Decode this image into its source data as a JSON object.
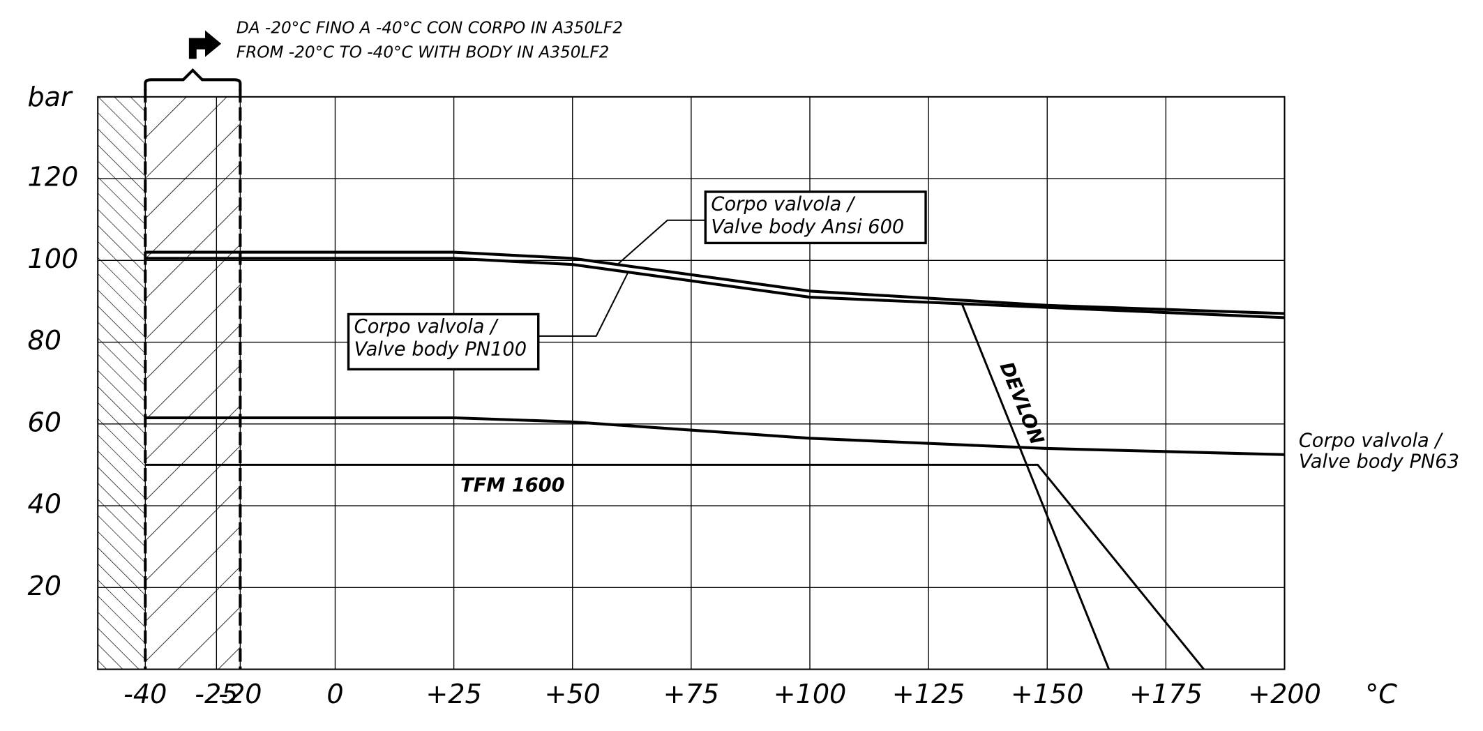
{
  "chart_data": {
    "type": "line",
    "annotation": [
      "DA -20°C FINO A -40°C CON CORPO IN A350LF2",
      "FROM -20°C TO -40°C WITH BODY IN A350LF2"
    ],
    "ylabel": "bar",
    "xlabel": "°C",
    "xlim": [
      -50,
      200
    ],
    "ylim": [
      0,
      140
    ],
    "xticks": [
      -40,
      -25,
      -20,
      0,
      {
        "value": 25,
        "label": "+25"
      },
      {
        "value": 50,
        "label": "+50"
      },
      {
        "value": 75,
        "label": "+75"
      },
      {
        "value": 100,
        "label": "+100"
      },
      {
        "value": 125,
        "label": "+125"
      },
      {
        "value": 150,
        "label": "+150"
      },
      {
        "value": 175,
        "label": "+175"
      },
      {
        "value": 200,
        "label": "+200"
      }
    ],
    "yticks": [
      20,
      40,
      60,
      80,
      100,
      120
    ],
    "grid": true,
    "cold_range": [
      -40,
      -20
    ],
    "color": "#000000",
    "series": [
      {
        "label": [
          "Corpo valvola /",
          "Valve body Ansi 600"
        ],
        "x": [
          -40,
          25,
          50,
          100,
          150,
          200
        ],
        "values": [
          102,
          102,
          100.5,
          92.5,
          89,
          87
        ]
      },
      {
        "label": [
          "Corpo valvola /",
          "Valve body PN100"
        ],
        "x": [
          -40,
          25,
          50,
          100,
          150,
          200
        ],
        "values": [
          100.5,
          100.5,
          99,
          91,
          88.5,
          86
        ]
      },
      {
        "label": [
          "Corpo valvola /",
          "Valve body PN63"
        ],
        "x": [
          -40,
          25,
          50,
          100,
          150,
          200
        ],
        "values": [
          61.5,
          61.5,
          60.5,
          56.5,
          54,
          52.5
        ]
      },
      {
        "name": "TFM 1600",
        "x": [
          -40,
          148,
          183
        ],
        "values": [
          50,
          50,
          0
        ]
      },
      {
        "name": "DEVLON",
        "x": [
          132,
          163
        ],
        "values": [
          89.5,
          0
        ]
      }
    ]
  }
}
